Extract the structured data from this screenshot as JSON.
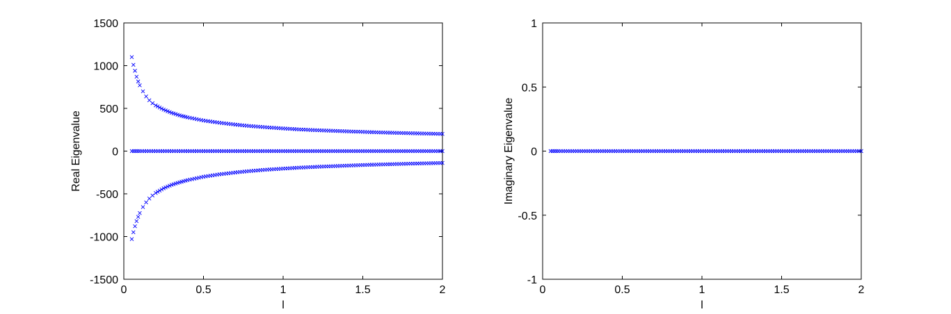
{
  "chart_data": [
    {
      "type": "scatter",
      "title": "",
      "xlabel": "l",
      "ylabel": "Real Eigenvalue",
      "xlim": [
        0,
        2
      ],
      "ylim": [
        -1500,
        1500
      ],
      "xticks": [
        0,
        0.5,
        1,
        1.5,
        2
      ],
      "xtick_labels": [
        "0",
        "0.5",
        "1",
        "1.5",
        "2"
      ],
      "yticks": [
        -1500,
        -1000,
        -500,
        0,
        500,
        1000,
        1500
      ],
      "ytick_labels": [
        "-1500",
        "-1000",
        "-500",
        "0",
        "500",
        "1000",
        "1500"
      ],
      "grid": false,
      "marker": "x",
      "marker_color": "#0000ff",
      "series": [
        {
          "x": [
            0.05,
            0.06,
            0.07,
            0.08,
            0.09,
            0.1,
            0.12,
            0.14,
            0.16,
            0.18,
            0.2,
            0.25,
            0.3,
            0.35,
            0.4,
            0.5,
            0.6,
            0.7,
            0.8,
            0.9,
            1.0,
            1.1,
            1.2,
            1.3,
            1.4,
            1.5,
            1.6,
            1.7,
            1.8,
            1.9,
            2.0
          ],
          "y": [
            1100,
            1010,
            940,
            870,
            815,
            770,
            700,
            640,
            595,
            560,
            535,
            485,
            448,
            418,
            395,
            358,
            332,
            310,
            292,
            278,
            265,
            254,
            245,
            238,
            231,
            225,
            219,
            214,
            209,
            205,
            201
          ]
        },
        {
          "x": [
            0.05,
            0.1,
            0.2,
            0.3,
            0.4,
            0.5,
            0.6,
            0.7,
            0.8,
            0.9,
            1.0,
            1.1,
            1.2,
            1.3,
            1.4,
            1.5,
            1.6,
            1.7,
            1.8,
            1.9,
            2.0
          ],
          "y": [
            0,
            0,
            0,
            0,
            0,
            0,
            0,
            0,
            0,
            0,
            0,
            0,
            0,
            0,
            0,
            0,
            0,
            0,
            0,
            0,
            0
          ]
        },
        {
          "x": [
            0.05,
            0.06,
            0.07,
            0.08,
            0.09,
            0.1,
            0.12,
            0.14,
            0.16,
            0.18,
            0.2,
            0.25,
            0.3,
            0.35,
            0.4,
            0.5,
            0.6,
            0.7,
            0.8,
            0.9,
            1.0,
            1.1,
            1.2,
            1.3,
            1.4,
            1.5,
            1.6,
            1.7,
            1.8,
            1.9,
            2.0
          ],
          "y": [
            -1030,
            -950,
            -880,
            -820,
            -770,
            -725,
            -655,
            -600,
            -555,
            -520,
            -490,
            -435,
            -395,
            -365,
            -340,
            -300,
            -272,
            -250,
            -232,
            -217,
            -205,
            -194,
            -185,
            -177,
            -170,
            -163,
            -157,
            -152,
            -147,
            -143,
            -139
          ]
        }
      ]
    },
    {
      "type": "scatter",
      "title": "",
      "xlabel": "l",
      "ylabel": "Imaginary Eigenvalue",
      "xlim": [
        0,
        2
      ],
      "ylim": [
        -1,
        1
      ],
      "xticks": [
        0,
        0.5,
        1,
        1.5,
        2
      ],
      "xtick_labels": [
        "0",
        "0.5",
        "1",
        "1.5",
        "2"
      ],
      "yticks": [
        -1,
        -0.5,
        0,
        0.5,
        1
      ],
      "ytick_labels": [
        "-1",
        "-0.5",
        "0",
        "0.5",
        "1"
      ],
      "grid": false,
      "marker": "x",
      "marker_color": "#0000ff",
      "series": [
        {
          "x": [
            0.05,
            0.1,
            0.2,
            0.3,
            0.4,
            0.5,
            0.6,
            0.7,
            0.8,
            0.9,
            1.0,
            1.1,
            1.2,
            1.3,
            1.4,
            1.5,
            1.6,
            1.7,
            1.8,
            1.9,
            2.0
          ],
          "y": [
            0,
            0,
            0,
            0,
            0,
            0,
            0,
            0,
            0,
            0,
            0,
            0,
            0,
            0,
            0,
            0,
            0,
            0,
            0,
            0,
            0
          ]
        }
      ]
    }
  ]
}
